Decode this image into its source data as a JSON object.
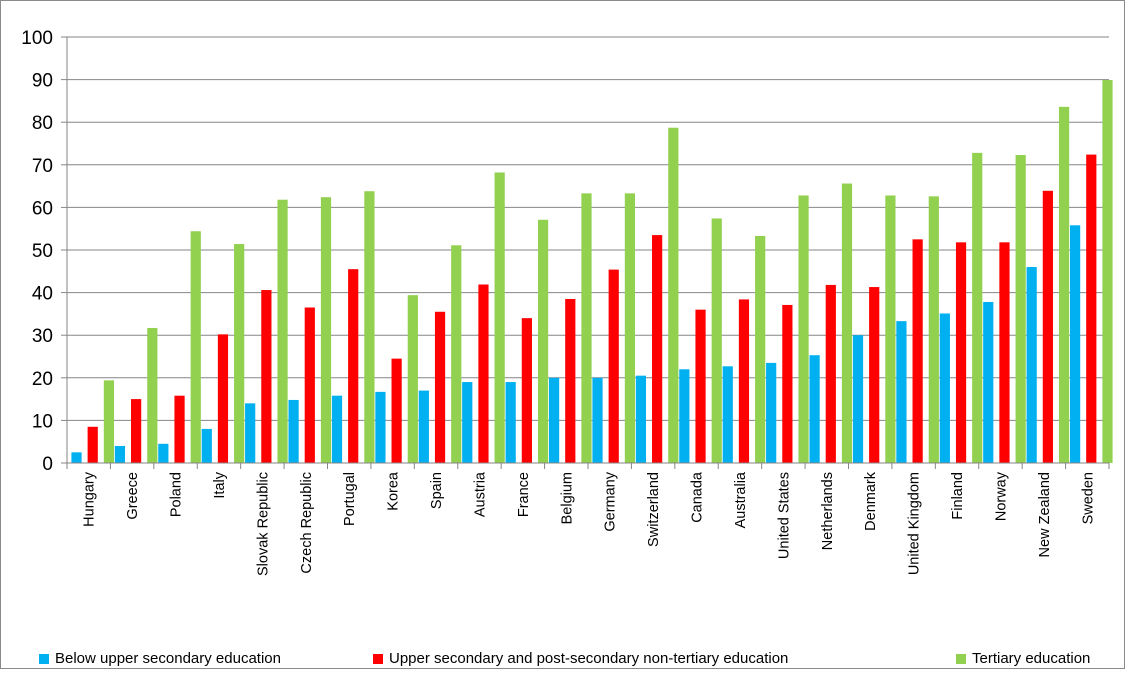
{
  "chart_data": {
    "type": "bar",
    "title": "",
    "xlabel": "",
    "ylabel": "",
    "ylim": [
      0,
      100
    ],
    "yticks": [
      "0",
      "10",
      "20",
      "30",
      "40",
      "50",
      "60",
      "70",
      "80",
      "90",
      "100"
    ],
    "grid": true,
    "legend_position": "bottom",
    "categories": [
      "Hungary",
      "Greece",
      "Poland",
      "Italy",
      "Slovak Republic",
      "Czech Republic",
      "Portugal",
      "Korea",
      "Spain",
      "Austria",
      "France",
      "Belgium",
      "Germany",
      "Switzerland",
      "Canada",
      "Australia",
      "United States",
      "Netherlands",
      "Denmark",
      "United Kingdom",
      "Finland",
      "Norway",
      "New Zealand",
      "Sweden"
    ],
    "series": [
      {
        "name": "Below upper secondary education",
        "color": "#00b0f0",
        "values": [
          2.5,
          4,
          4.5,
          8,
          14,
          14.8,
          15.8,
          16.7,
          17,
          19,
          19,
          20,
          20,
          20.5,
          22,
          22.7,
          23.5,
          25.3,
          30,
          33.3,
          35.1,
          37.8,
          46,
          55.8
        ]
      },
      {
        "name": "Upper secondary and post-secondary non-tertiary education",
        "color": "#ff0000",
        "values": [
          8.5,
          15,
          15.8,
          30.2,
          40.6,
          36.5,
          45.5,
          24.5,
          35.5,
          41.9,
          34,
          38.5,
          45.4,
          53.5,
          36,
          38.4,
          37.1,
          41.8,
          41.3,
          52.5,
          51.8,
          51.8,
          63.9,
          72.4
        ]
      },
      {
        "name": "Tertiary education",
        "color": "#92d050",
        "values": [
          19.4,
          31.7,
          54.4,
          51.4,
          61.8,
          62.4,
          63.8,
          39.4,
          51.1,
          68.2,
          57.1,
          63.3,
          63.3,
          78.7,
          57.4,
          53.3,
          62.8,
          65.6,
          62.8,
          62.6,
          72.8,
          72.3,
          83.6,
          89.9
        ]
      }
    ]
  }
}
